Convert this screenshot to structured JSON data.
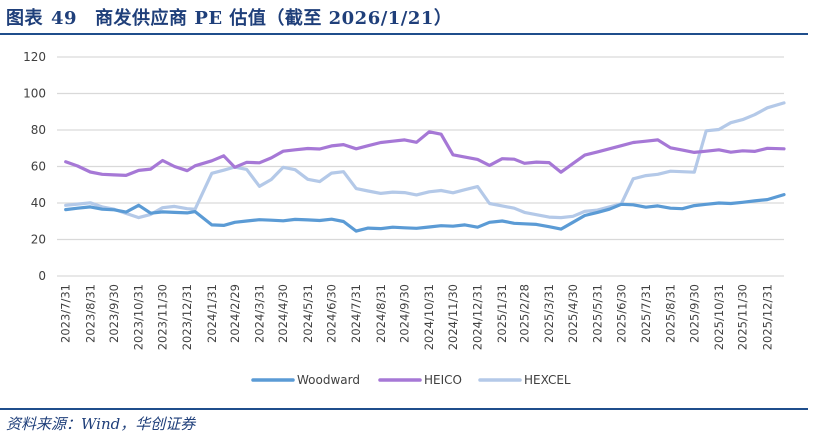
{
  "header": {
    "figure_label": "图表",
    "figure_number": "49",
    "title": "商发供应商 PE 估值（截至 2026/1/21）"
  },
  "footer": {
    "source": "资料来源：Wind，华创证券"
  },
  "legend": {
    "items": [
      {
        "label": "Woodward",
        "color": "#5b9bd5"
      },
      {
        "label": "HEICO",
        "color": "#a678d6"
      },
      {
        "label": "HEXCEL",
        "color": "#b4c9e8"
      }
    ]
  },
  "chart_data": {
    "type": "line",
    "title": "商发供应商 PE 估值（截至 2026/1/21）",
    "xlabel": "",
    "ylabel": "",
    "ylim": [
      0,
      120
    ],
    "yticks": [
      0,
      20,
      40,
      60,
      80,
      100,
      120
    ],
    "grid": true,
    "legend_position": "bottom",
    "x_tick_labels": [
      "2023/7/31",
      "2023/8/31",
      "2023/9/30",
      "2023/10/31",
      "2023/11/30",
      "2023/12/31",
      "2024/1/31",
      "2024/2/29",
      "2024/3/31",
      "2024/4/30",
      "2024/5/31",
      "2024/6/30",
      "2024/7/31",
      "2024/8/31",
      "2024/9/30",
      "2024/10/31",
      "2024/11/30",
      "2024/12/31",
      "2025/1/31",
      "2025/2/28",
      "2025/3/31",
      "2025/4/30",
      "2025/5/31",
      "2025/6/30",
      "2025/7/31",
      "2025/8/31",
      "2025/9/30",
      "2025/10/31",
      "2025/11/30",
      "2025/12/31"
    ],
    "x": [
      "2023/7/31",
      "2023/8/15",
      "2023/8/31",
      "2023/9/15",
      "2023/9/30",
      "2023/10/15",
      "2023/10/31",
      "2023/11/15",
      "2023/11/30",
      "2023/12/15",
      "2023/12/31",
      "2024/1/10",
      "2024/1/31",
      "2024/2/15",
      "2024/2/29",
      "2024/3/15",
      "2024/3/31",
      "2024/4/15",
      "2024/4/30",
      "2024/5/15",
      "2024/5/31",
      "2024/6/15",
      "2024/6/30",
      "2024/7/15",
      "2024/7/31",
      "2024/8/15",
      "2024/8/31",
      "2024/9/15",
      "2024/9/30",
      "2024/10/15",
      "2024/10/31",
      "2024/11/15",
      "2024/11/30",
      "2024/12/15",
      "2024/12/31",
      "2025/1/15",
      "2025/1/31",
      "2025/2/15",
      "2025/2/28",
      "2025/3/15",
      "2025/3/31",
      "2025/4/15",
      "2025/4/30",
      "2025/5/15",
      "2025/5/31",
      "2025/6/15",
      "2025/6/30",
      "2025/7/15",
      "2025/7/31",
      "2025/8/15",
      "2025/8/31",
      "2025/9/15",
      "2025/9/30",
      "2025/10/15",
      "2025/10/31",
      "2025/11/15",
      "2025/11/30",
      "2025/12/15",
      "2025/12/31",
      "2026/1/21"
    ],
    "series": [
      {
        "name": "Woodward",
        "color": "#5b9bd5",
        "values": [
          36,
          37,
          38,
          37,
          36,
          35,
          39,
          34,
          35,
          35,
          35,
          35,
          28,
          28,
          29,
          30,
          31,
          31,
          30,
          31,
          31,
          30,
          31,
          30,
          25,
          26,
          26,
          27,
          26,
          26,
          27,
          28,
          27,
          28,
          27,
          29,
          30,
          29,
          29,
          28,
          27,
          26,
          29,
          33,
          35,
          37,
          39,
          39,
          38,
          38,
          37,
          37,
          39,
          39,
          40,
          40,
          40,
          41,
          42,
          45
        ]
      },
      {
        "name": "HEICO",
        "color": "#a678d6",
        "values": [
          63,
          60,
          57,
          56,
          55,
          55,
          58,
          59,
          63,
          60,
          58,
          60,
          63,
          66,
          60,
          62,
          62,
          65,
          68,
          69,
          70,
          70,
          71,
          72,
          70,
          71,
          73,
          74,
          75,
          73,
          79,
          78,
          66,
          65,
          64,
          61,
          64,
          64,
          62,
          62,
          62,
          57,
          62,
          66,
          68,
          70,
          71,
          73,
          74,
          75,
          70,
          69,
          68,
          68,
          69,
          68,
          69,
          68,
          70,
          70
        ]
      },
      {
        "name": "HEXCEL",
        "color": "#b4c9e8",
        "values": [
          39,
          39,
          40,
          38,
          37,
          34,
          32,
          34,
          37,
          38,
          37,
          37,
          56,
          58,
          60,
          58,
          49,
          53,
          60,
          58,
          53,
          52,
          56,
          57,
          48,
          47,
          45,
          46,
          46,
          44,
          46,
          47,
          46,
          47,
          49,
          40,
          38,
          37,
          35,
          34,
          32,
          32,
          33,
          35,
          36,
          38,
          40,
          53,
          55,
          56,
          57,
          57,
          57,
          80,
          80,
          84,
          86,
          88,
          92,
          95
        ]
      }
    ]
  }
}
